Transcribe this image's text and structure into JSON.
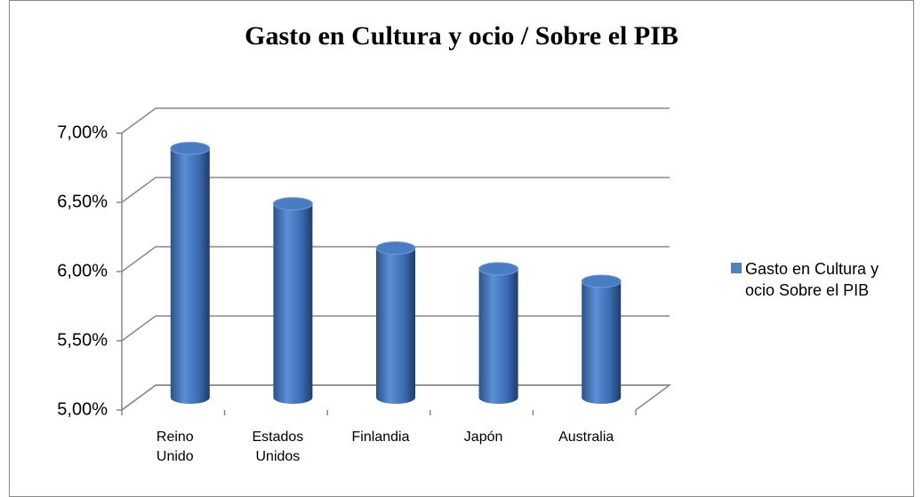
{
  "chart_data": {
    "type": "bar3d",
    "title": "Gasto en Cultura y ocio / Sobre el PIB",
    "categories": [
      "Reino Unido",
      "Estados Unidos",
      "Finlandia",
      "Japón",
      "Australia"
    ],
    "series": [
      {
        "name": "Gasto en Cultura y ocio  Sobre el PIB",
        "color": "#4f81bd",
        "values": [
          6.8,
          6.4,
          6.08,
          5.93,
          5.84
        ]
      }
    ],
    "ylim": [
      5,
      7
    ],
    "yticks": [
      {
        "value": 5,
        "label": "5,00%"
      },
      {
        "value": 5.5,
        "label": "5,50%"
      },
      {
        "value": 6,
        "label": "6,00%"
      },
      {
        "value": 6.5,
        "label": "6,50%"
      },
      {
        "value": 7,
        "label": "7,00%"
      }
    ],
    "grid": true,
    "legend": "right"
  }
}
